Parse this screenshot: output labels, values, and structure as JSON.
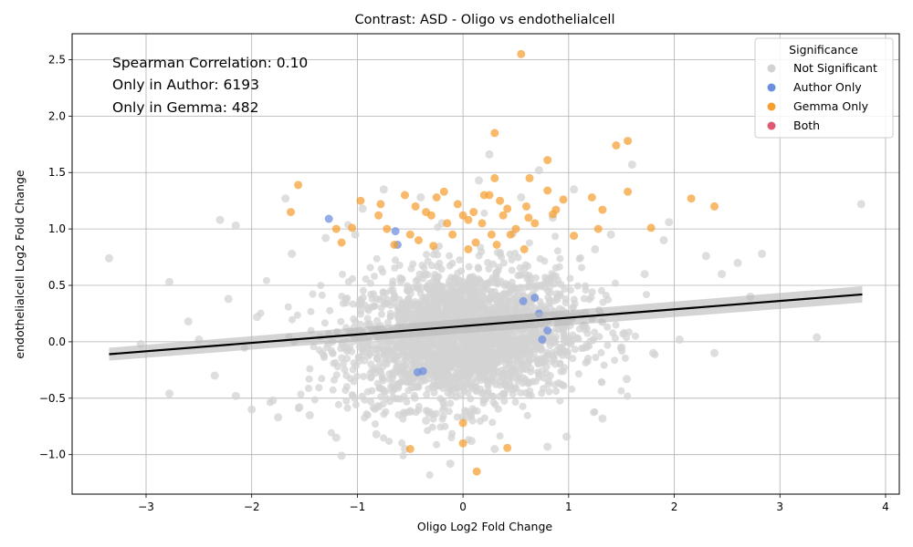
{
  "chart_data": {
    "type": "scatter",
    "title": "Contrast: ASD - Oligo vs endothelialcell",
    "xlabel": "Oligo Log2 Fold Change",
    "ylabel": "endothelialcell Log2 Fold Change",
    "xlim": [
      -3.7,
      4.13
    ],
    "ylim": [
      -1.35,
      2.73
    ],
    "xticks": [
      -3,
      -2,
      -1,
      0,
      1,
      2,
      3,
      4
    ],
    "yticks": [
      -1.0,
      -0.5,
      0.0,
      0.5,
      1.0,
      1.5,
      2.0,
      2.5
    ],
    "xtick_labels": [
      "−3",
      "−2",
      "−1",
      "0",
      "1",
      "2",
      "3",
      "4"
    ],
    "ytick_labels": [
      "−1.0",
      "−0.5",
      "0.0",
      "0.5",
      "1.0",
      "1.5",
      "2.0",
      "2.5"
    ],
    "grid": true,
    "annotations": [
      "Spearman Correlation: 0.10",
      "Only in Author: 6193",
      "Only in Gemma: 482"
    ],
    "legend": {
      "title": "Significance",
      "position": "top-right",
      "entries": [
        {
          "label": "Not Significant",
          "color": "#d3d3d3"
        },
        {
          "label": "Author Only",
          "color": "#6b8ee0"
        },
        {
          "label": "Gemma Only",
          "color": "#f5a030"
        },
        {
          "label": "Both",
          "color": "#de5a73"
        }
      ]
    },
    "regression": {
      "x": [
        -3.35,
        3.78
      ],
      "y": [
        -0.11,
        0.42
      ]
    },
    "series": [
      {
        "name": "Not Significant",
        "color": "#d3d3d3",
        "points": [
          [
            -3.35,
            0.74
          ],
          [
            -2.78,
            0.53
          ],
          [
            -2.78,
            -0.46
          ],
          [
            -2.3,
            1.08
          ],
          [
            -2.15,
            1.03
          ],
          [
            -2.22,
            0.38
          ],
          [
            -2.15,
            -0.48
          ],
          [
            -1.95,
            0.22
          ],
          [
            -1.8,
            -0.52
          ],
          [
            -1.62,
            0.78
          ],
          [
            -1.68,
            1.27
          ],
          [
            -1.55,
            -0.58
          ],
          [
            -1.45,
            -0.65
          ],
          [
            -1.2,
            -0.85
          ],
          [
            -1.15,
            -1.01
          ],
          [
            -0.82,
            -0.82
          ],
          [
            -0.35,
            -0.7
          ],
          [
            -0.12,
            -1.08
          ],
          [
            0.08,
            -0.88
          ],
          [
            0.25,
            1.66
          ],
          [
            0.72,
            1.52
          ],
          [
            1.05,
            1.35
          ],
          [
            1.6,
            1.57
          ],
          [
            1.95,
            1.06
          ],
          [
            2.3,
            0.76
          ],
          [
            2.45,
            0.6
          ],
          [
            2.05,
            0.02
          ],
          [
            2.38,
            -0.1
          ],
          [
            2.83,
            0.78
          ],
          [
            2.72,
            0.4
          ],
          [
            3.35,
            0.04
          ],
          [
            3.77,
            1.22
          ],
          [
            1.32,
            -0.68
          ],
          [
            0.98,
            -0.84
          ],
          [
            0.8,
            -0.93
          ],
          [
            -2.5,
            0.02
          ],
          [
            -2.35,
            -0.3
          ],
          [
            -2.0,
            -0.6
          ],
          [
            -1.75,
            -0.67
          ],
          [
            1.8,
            -0.1
          ],
          [
            1.5,
            -0.05
          ],
          [
            1.72,
            0.6
          ],
          [
            1.4,
            0.95
          ],
          [
            -0.95,
            1.18
          ],
          [
            -0.75,
            1.35
          ],
          [
            -0.4,
            1.28
          ],
          [
            0.15,
            1.43
          ],
          [
            0.55,
            1.28
          ],
          [
            -3.05,
            -0.02
          ],
          [
            -1.02,
            0.95
          ],
          [
            1.9,
            0.9
          ],
          [
            0.3,
            -0.95
          ],
          [
            -0.55,
            -0.95
          ],
          [
            -1.3,
            0.92
          ],
          [
            1.25,
            0.82
          ],
          [
            0.85,
            1.1
          ],
          [
            -0.2,
            1.05
          ],
          [
            2.6,
            0.7
          ],
          [
            -2.6,
            0.18
          ],
          [
            1.55,
            -0.33
          ]
        ]
      },
      {
        "name": "Author Only",
        "color": "#6b8ee0",
        "points": [
          [
            -1.27,
            1.09
          ],
          [
            -0.64,
            0.98
          ],
          [
            -0.62,
            0.86
          ],
          [
            -0.43,
            -0.27
          ],
          [
            -0.38,
            -0.26
          ],
          [
            0.57,
            0.36
          ],
          [
            0.68,
            0.39
          ],
          [
            0.72,
            0.25
          ],
          [
            0.8,
            0.1
          ],
          [
            0.75,
            0.02
          ]
        ]
      },
      {
        "name": "Gemma Only",
        "color": "#f5a030",
        "points": [
          [
            0.55,
            2.55
          ],
          [
            0.3,
            1.85
          ],
          [
            0.8,
            1.61
          ],
          [
            1.45,
            1.74
          ],
          [
            1.56,
            1.78
          ],
          [
            0.63,
            1.45
          ],
          [
            0.3,
            1.45
          ],
          [
            0.8,
            1.34
          ],
          [
            1.56,
            1.33
          ],
          [
            0.95,
            1.26
          ],
          [
            1.22,
            1.28
          ],
          [
            2.16,
            1.27
          ],
          [
            2.38,
            1.2
          ],
          [
            1.78,
            1.01
          ],
          [
            1.28,
            1.0
          ],
          [
            1.32,
            1.17
          ],
          [
            0.88,
            1.17
          ],
          [
            0.85,
            1.13
          ],
          [
            1.05,
            0.94
          ],
          [
            -1.56,
            1.39
          ],
          [
            -1.63,
            1.15
          ],
          [
            -1.2,
            1.0
          ],
          [
            -1.15,
            0.88
          ],
          [
            -0.97,
            1.25
          ],
          [
            -0.8,
            1.12
          ],
          [
            -0.78,
            1.22
          ],
          [
            -0.72,
            1.0
          ],
          [
            -0.55,
            1.3
          ],
          [
            -0.45,
            1.2
          ],
          [
            -0.35,
            1.15
          ],
          [
            -0.25,
            1.28
          ],
          [
            -0.18,
            1.33
          ],
          [
            -0.15,
            1.05
          ],
          [
            0.0,
            1.12
          ],
          [
            0.05,
            1.08
          ],
          [
            0.1,
            1.15
          ],
          [
            0.2,
            1.3
          ],
          [
            0.25,
            1.3
          ],
          [
            0.35,
            1.25
          ],
          [
            0.42,
            1.18
          ],
          [
            0.38,
            1.12
          ],
          [
            0.5,
            1.0
          ],
          [
            0.6,
            1.2
          ],
          [
            0.62,
            1.1
          ],
          [
            0.68,
            1.05
          ],
          [
            0.58,
            0.82
          ],
          [
            -0.5,
            0.95
          ],
          [
            -0.42,
            0.9
          ],
          [
            -0.1,
            0.95
          ],
          [
            0.12,
            0.88
          ],
          [
            0.05,
            0.82
          ],
          [
            -0.65,
            0.86
          ],
          [
            0.32,
            0.86
          ],
          [
            -0.28,
            0.85
          ],
          [
            0.18,
            1.05
          ],
          [
            -1.05,
            1.01
          ],
          [
            0.0,
            -0.72
          ],
          [
            0.0,
            -0.9
          ],
          [
            -0.5,
            -0.95
          ],
          [
            0.42,
            -0.94
          ],
          [
            0.13,
            -1.15
          ],
          [
            -0.05,
            1.22
          ],
          [
            0.45,
            0.95
          ],
          [
            -0.3,
            1.12
          ],
          [
            0.27,
            0.95
          ]
        ]
      },
      {
        "name": "Both",
        "color": "#de5a73",
        "points": []
      }
    ]
  }
}
